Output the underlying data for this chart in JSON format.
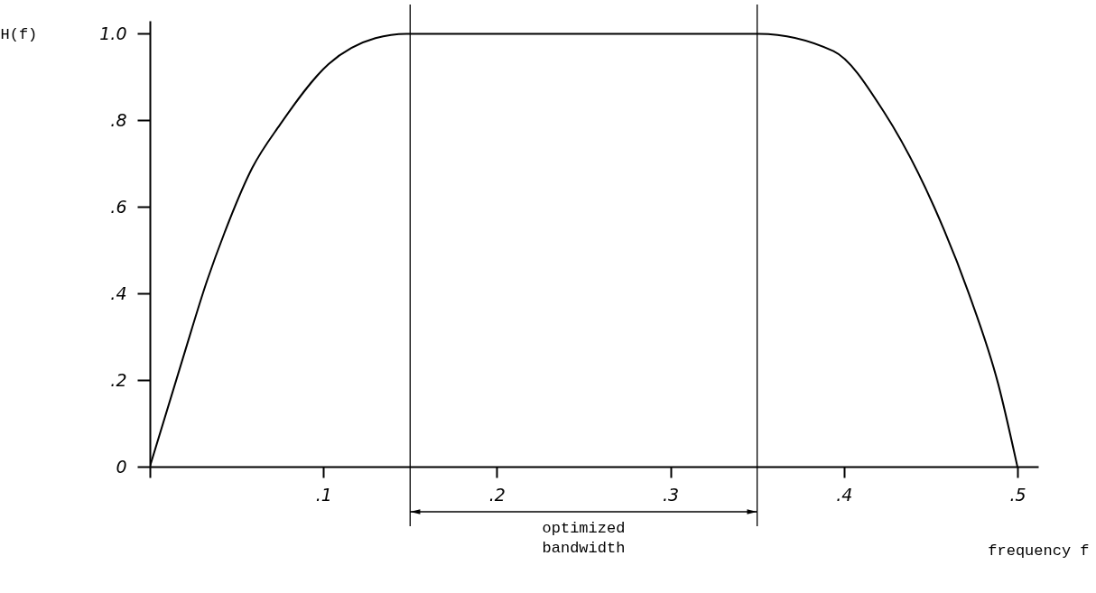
{
  "chart_data": {
    "type": "line",
    "xlabel": "frequency f",
    "ylabel": "H(f)",
    "series": [
      {
        "color": "#000000",
        "x": [
          0,
          0.019,
          0.033,
          0.043,
          0.059,
          0.075,
          0.103,
          0.13,
          0.148,
          0.25,
          0.351,
          0.394,
          0.423,
          0.452,
          0.472,
          0.489,
          0.5
        ],
        "values": [
          0,
          0.25,
          0.43,
          0.54,
          0.69,
          0.79,
          0.93,
          0.99,
          1.0,
          1.0,
          1.0,
          0.96,
          0.82,
          0.6,
          0.4,
          0.19,
          0
        ]
      }
    ],
    "xlim": [
      0,
      0.512
    ],
    "ylim": [
      0,
      1.03
    ],
    "xticks": [
      {
        "value": 0,
        "label": null
      },
      {
        "value": 0.1,
        "label": ".1"
      },
      {
        "value": 0.2,
        "label": ".2"
      },
      {
        "value": 0.3,
        "label": ".3"
      },
      {
        "value": 0.4,
        "label": ".4"
      },
      {
        "value": 0.5,
        "label": ".5"
      }
    ],
    "yticks": [
      0,
      {
        "value": 0.2,
        "label": ".2"
      },
      {
        "value": 0.4,
        "label": ".4"
      },
      {
        "value": 0.6,
        "label": ".6"
      },
      {
        "value": 0.8,
        "label": ".8"
      },
      {
        "value": 1,
        "label": "1.0"
      }
    ],
    "ref_lines": [
      {
        "axis": "x",
        "value": 0.15
      },
      {
        "axis": "x",
        "value": 0.35
      }
    ],
    "annotations": [
      "optimized bandwidth"
    ],
    "grid": false,
    "marker": "none",
    "line_style": "solid"
  }
}
